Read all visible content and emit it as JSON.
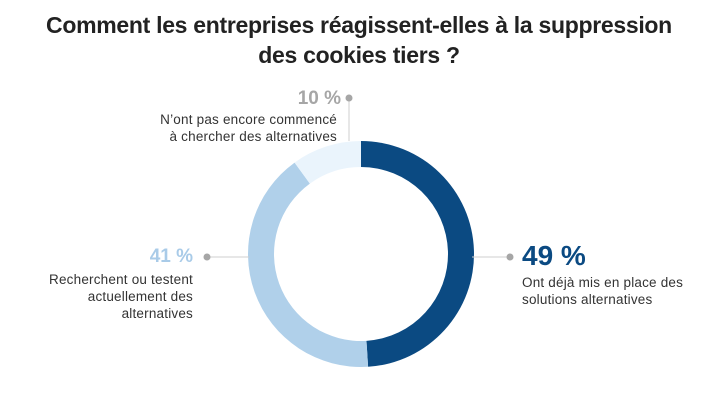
{
  "chart_data": {
    "type": "pie",
    "variant": "donut",
    "title": "Comment les entreprises réagissent-elles à la suppression des cookies tiers ?",
    "title_lines": [
      "Comment les entreprises réagissent-elles à la suppression",
      "des cookies tiers ?"
    ],
    "slices": [
      {
        "label_lines": [
          "Ont déjà mis en place des",
          "solutions alternatives"
        ],
        "value": 49,
        "display": "49 %",
        "color": "#0b4a82",
        "label_color": "#0b4a82"
      },
      {
        "label_lines": [
          "Recherchent ou testent",
          "actuellement des",
          "alternatives"
        ],
        "value": 41,
        "display": "41 %",
        "color": "#b0d0ea",
        "label_color": "#a9cbe8"
      },
      {
        "label_lines": [
          "N’ont pas encore commencé",
          "à chercher des alternatives"
        ],
        "value": 10,
        "display": "10 %",
        "color": "#eaf4fc",
        "label_color": "#a6a6a6"
      }
    ],
    "leader_color": "#a6a6a6"
  }
}
